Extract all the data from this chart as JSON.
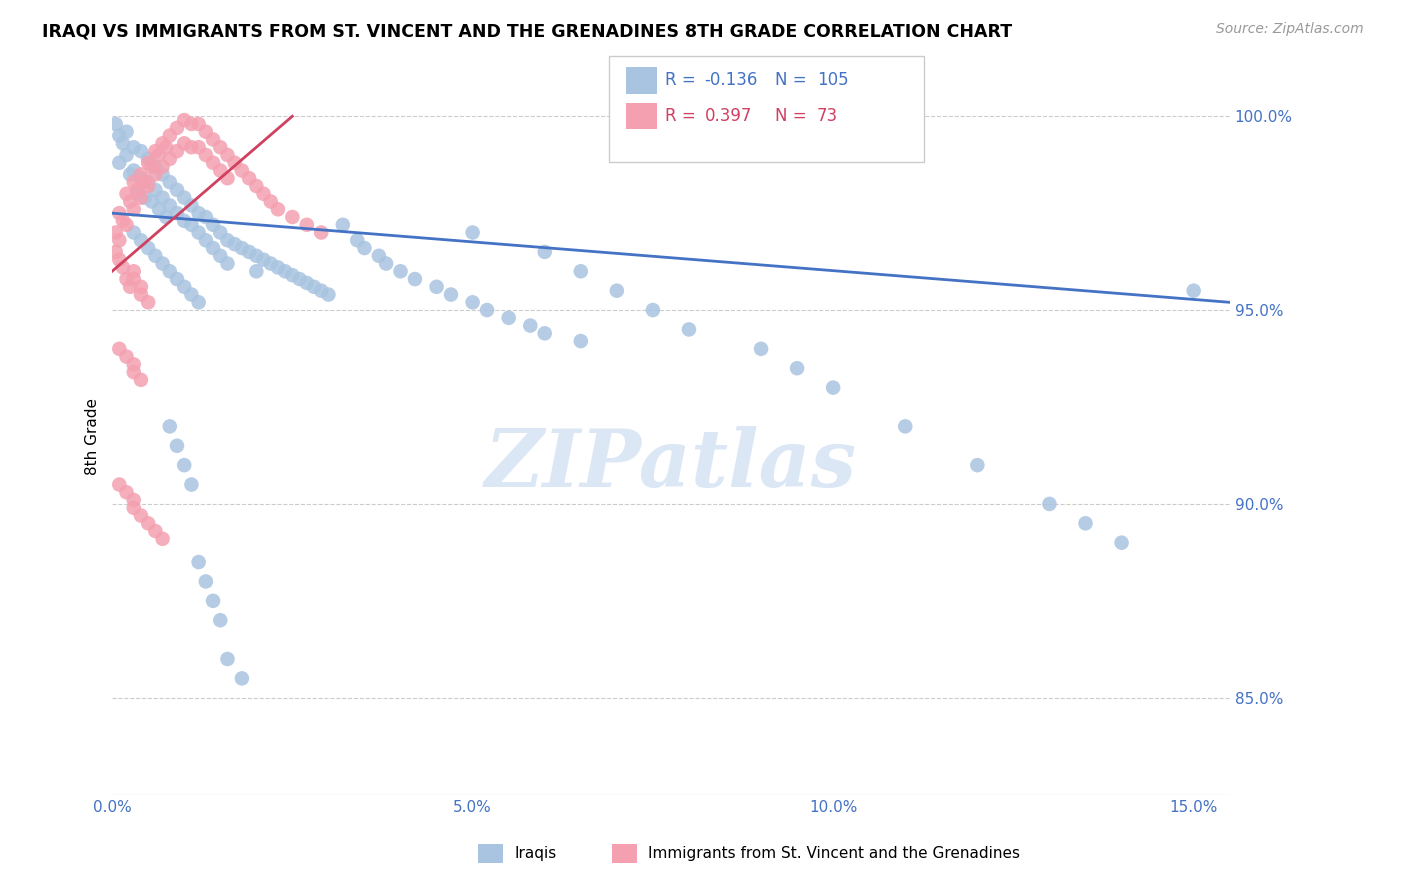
{
  "title": "IRAQI VS IMMIGRANTS FROM ST. VINCENT AND THE GRENADINES 8TH GRADE CORRELATION CHART",
  "source": "Source: ZipAtlas.com",
  "ylabel": "8th Grade",
  "yticks": [
    "85.0%",
    "90.0%",
    "95.0%",
    "100.0%"
  ],
  "ytick_vals": [
    0.85,
    0.9,
    0.95,
    1.0
  ],
  "xtick_vals": [
    0.0,
    0.05,
    0.1,
    0.15
  ],
  "xtick_labels": [
    "0.0%",
    "5.0%",
    "10.0%",
    "15.0%"
  ],
  "xmin": 0.0,
  "xmax": 0.155,
  "ymin": 0.825,
  "ymax": 1.01,
  "blue_color": "#a8c4e0",
  "pink_color": "#f4a0b0",
  "line_blue": "#4472c4",
  "line_pink": "#d04060",
  "text_blue": "#4472c4",
  "text_pink": "#d04060",
  "axis_color": "#4472c4",
  "watermark_color": "#ccddf0",
  "watermark": "ZIPatlas",
  "blue_line_x": [
    0.0,
    0.155
  ],
  "blue_line_y": [
    0.975,
    0.952
  ],
  "pink_line_x": [
    0.0,
    0.025
  ],
  "pink_line_y": [
    0.96,
    1.0
  ],
  "iraqis_x": [
    0.0005,
    0.001,
    0.001,
    0.0015,
    0.002,
    0.002,
    0.0025,
    0.003,
    0.003,
    0.0035,
    0.004,
    0.004,
    0.0045,
    0.005,
    0.005,
    0.0055,
    0.006,
    0.006,
    0.0065,
    0.007,
    0.007,
    0.0075,
    0.008,
    0.008,
    0.009,
    0.009,
    0.01,
    0.01,
    0.011,
    0.011,
    0.012,
    0.012,
    0.013,
    0.013,
    0.014,
    0.014,
    0.015,
    0.015,
    0.016,
    0.016,
    0.017,
    0.018,
    0.019,
    0.02,
    0.02,
    0.021,
    0.022,
    0.023,
    0.024,
    0.025,
    0.026,
    0.027,
    0.028,
    0.029,
    0.03,
    0.032,
    0.034,
    0.035,
    0.037,
    0.038,
    0.04,
    0.042,
    0.045,
    0.047,
    0.05,
    0.052,
    0.055,
    0.058,
    0.06,
    0.065,
    0.003,
    0.004,
    0.005,
    0.006,
    0.007,
    0.008,
    0.009,
    0.01,
    0.011,
    0.012,
    0.05,
    0.06,
    0.065,
    0.07,
    0.075,
    0.08,
    0.09,
    0.095,
    0.1,
    0.11,
    0.12,
    0.13,
    0.135,
    0.14,
    0.15,
    0.008,
    0.009,
    0.01,
    0.011,
    0.012,
    0.013,
    0.014,
    0.015,
    0.016,
    0.018
  ],
  "iraqis_y": [
    0.998,
    0.995,
    0.988,
    0.993,
    0.996,
    0.99,
    0.985,
    0.992,
    0.986,
    0.98,
    0.991,
    0.984,
    0.979,
    0.989,
    0.983,
    0.978,
    0.987,
    0.981,
    0.976,
    0.985,
    0.979,
    0.974,
    0.983,
    0.977,
    0.981,
    0.975,
    0.979,
    0.973,
    0.977,
    0.972,
    0.975,
    0.97,
    0.974,
    0.968,
    0.972,
    0.966,
    0.97,
    0.964,
    0.968,
    0.962,
    0.967,
    0.966,
    0.965,
    0.964,
    0.96,
    0.963,
    0.962,
    0.961,
    0.96,
    0.959,
    0.958,
    0.957,
    0.956,
    0.955,
    0.954,
    0.972,
    0.968,
    0.966,
    0.964,
    0.962,
    0.96,
    0.958,
    0.956,
    0.954,
    0.952,
    0.95,
    0.948,
    0.946,
    0.944,
    0.942,
    0.97,
    0.968,
    0.966,
    0.964,
    0.962,
    0.96,
    0.958,
    0.956,
    0.954,
    0.952,
    0.97,
    0.965,
    0.96,
    0.955,
    0.95,
    0.945,
    0.94,
    0.935,
    0.93,
    0.92,
    0.91,
    0.9,
    0.895,
    0.89,
    0.955,
    0.92,
    0.915,
    0.91,
    0.905,
    0.885,
    0.88,
    0.875,
    0.87,
    0.86,
    0.855
  ],
  "svg_x": [
    0.0005,
    0.001,
    0.001,
    0.0015,
    0.002,
    0.002,
    0.0025,
    0.003,
    0.003,
    0.0035,
    0.004,
    0.004,
    0.0045,
    0.005,
    0.005,
    0.0055,
    0.006,
    0.006,
    0.0065,
    0.007,
    0.007,
    0.0075,
    0.008,
    0.008,
    0.009,
    0.009,
    0.01,
    0.01,
    0.011,
    0.011,
    0.012,
    0.012,
    0.013,
    0.013,
    0.014,
    0.014,
    0.015,
    0.015,
    0.016,
    0.016,
    0.017,
    0.018,
    0.019,
    0.02,
    0.021,
    0.022,
    0.023,
    0.025,
    0.027,
    0.029,
    0.0005,
    0.001,
    0.0015,
    0.002,
    0.0025,
    0.003,
    0.003,
    0.004,
    0.004,
    0.005,
    0.001,
    0.002,
    0.003,
    0.003,
    0.004,
    0.001,
    0.002,
    0.003,
    0.003,
    0.004,
    0.005,
    0.006,
    0.007
  ],
  "svg_y": [
    0.97,
    0.975,
    0.968,
    0.973,
    0.98,
    0.972,
    0.978,
    0.983,
    0.976,
    0.981,
    0.985,
    0.979,
    0.983,
    0.988,
    0.982,
    0.987,
    0.991,
    0.985,
    0.99,
    0.993,
    0.987,
    0.992,
    0.995,
    0.989,
    0.997,
    0.991,
    0.999,
    0.993,
    0.998,
    0.992,
    0.998,
    0.992,
    0.996,
    0.99,
    0.994,
    0.988,
    0.992,
    0.986,
    0.99,
    0.984,
    0.988,
    0.986,
    0.984,
    0.982,
    0.98,
    0.978,
    0.976,
    0.974,
    0.972,
    0.97,
    0.965,
    0.963,
    0.961,
    0.958,
    0.956,
    0.96,
    0.958,
    0.956,
    0.954,
    0.952,
    0.94,
    0.938,
    0.936,
    0.934,
    0.932,
    0.905,
    0.903,
    0.901,
    0.899,
    0.897,
    0.895,
    0.893,
    0.891
  ]
}
